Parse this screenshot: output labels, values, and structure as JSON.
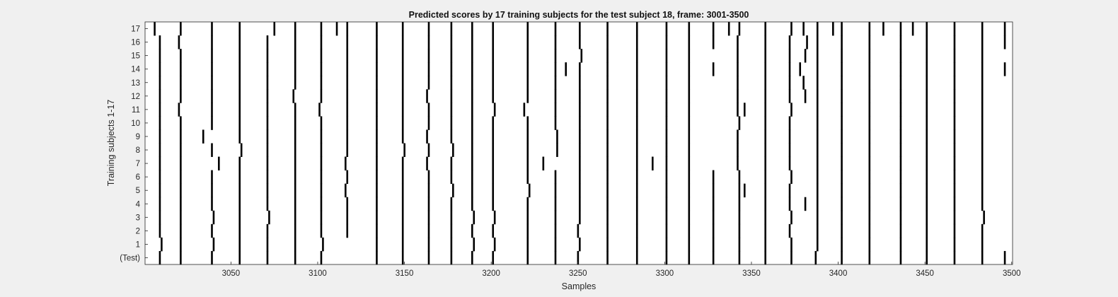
{
  "chart_data": {
    "type": "heatmap",
    "title": "Predicted scores by 17 training subjects for the test subject 18, frame: 3001-3500",
    "xlabel": "Samples",
    "ylabel": "Training subjects 1-17",
    "xlim": [
      3001,
      3500
    ],
    "x_ticks": [
      "3050",
      "3100",
      "3150",
      "3200",
      "3250",
      "3300",
      "3350",
      "3400",
      "3450",
      "3500"
    ],
    "x_tick_values": [
      3050,
      3100,
      3150,
      3200,
      3250,
      3300,
      3350,
      3400,
      3450,
      3500
    ],
    "y_tick_labels": [
      "(Test)",
      "1",
      "2",
      "3",
      "4",
      "5",
      "6",
      "7",
      "8",
      "9",
      "10",
      "11",
      "12",
      "13",
      "14",
      "15",
      "16",
      "17"
    ],
    "background_color": "#ffffff",
    "mark_color": "#000000",
    "rows": [
      {
        "label": "(Test)",
        "events": [
          3009,
          3021,
          3039,
          3055,
          3071,
          3087,
          3102,
          3134,
          3149,
          3164,
          3177,
          3189,
          3201,
          3221,
          3237,
          3250,
          3267,
          3284,
          3301,
          3314,
          3328,
          3343,
          3358,
          3373,
          3387,
          3402,
          3418,
          3436,
          3451,
          3467,
          3483,
          3496
        ]
      },
      {
        "label": "1",
        "events": [
          3010,
          3021,
          3040,
          3055,
          3071,
          3087,
          3103,
          3134,
          3149,
          3164,
          3177,
          3190,
          3202,
          3221,
          3237,
          3251,
          3267,
          3284,
          3301,
          3314,
          3328,
          3343,
          3358,
          3373,
          3388,
          3402,
          3418,
          3436,
          3451,
          3467,
          3483
        ]
      },
      {
        "label": "2",
        "events": [
          3009,
          3021,
          3039,
          3055,
          3071,
          3087,
          3102,
          3117,
          3134,
          3149,
          3164,
          3177,
          3189,
          3201,
          3221,
          3237,
          3250,
          3267,
          3284,
          3301,
          3314,
          3328,
          3343,
          3358,
          3372,
          3388,
          3402,
          3418,
          3436,
          3451,
          3467,
          3483
        ]
      },
      {
        "label": "3",
        "events": [
          3009,
          3021,
          3040,
          3055,
          3072,
          3087,
          3102,
          3117,
          3134,
          3149,
          3164,
          3177,
          3190,
          3202,
          3221,
          3237,
          3251,
          3267,
          3284,
          3301,
          3314,
          3328,
          3343,
          3358,
          3373,
          3388,
          3402,
          3418,
          3436,
          3451,
          3467,
          3484
        ]
      },
      {
        "label": "4",
        "events": [
          3009,
          3021,
          3039,
          3055,
          3071,
          3087,
          3102,
          3117,
          3134,
          3149,
          3164,
          3177,
          3189,
          3201,
          3221,
          3237,
          3251,
          3267,
          3284,
          3301,
          3314,
          3328,
          3343,
          3358,
          3372,
          3381,
          3388,
          3402,
          3418,
          3436,
          3451,
          3467,
          3483
        ]
      },
      {
        "label": "5",
        "events": [
          3009,
          3021,
          3039,
          3055,
          3071,
          3087,
          3102,
          3116,
          3134,
          3149,
          3164,
          3178,
          3189,
          3201,
          3222,
          3237,
          3251,
          3267,
          3284,
          3301,
          3314,
          3328,
          3343,
          3346,
          3358,
          3372,
          3388,
          3402,
          3418,
          3436,
          3451,
          3467,
          3483
        ]
      },
      {
        "label": "6",
        "events": [
          3009,
          3021,
          3039,
          3055,
          3071,
          3087,
          3102,
          3117,
          3134,
          3149,
          3164,
          3177,
          3189,
          3201,
          3221,
          3237,
          3251,
          3267,
          3284,
          3301,
          3314,
          3328,
          3343,
          3358,
          3373,
          3388,
          3402,
          3418,
          3436,
          3451,
          3467,
          3483
        ]
      },
      {
        "label": "7",
        "events": [
          3009,
          3021,
          3043,
          3055,
          3071,
          3087,
          3102,
          3116,
          3134,
          3149,
          3163,
          3177,
          3189,
          3201,
          3221,
          3230,
          3251,
          3267,
          3284,
          3293,
          3301,
          3314,
          3342,
          3358,
          3372,
          3388,
          3402,
          3418,
          3436,
          3451,
          3467,
          3483
        ]
      },
      {
        "label": "8",
        "events": [
          3009,
          3021,
          3039,
          3056,
          3071,
          3087,
          3102,
          3117,
          3134,
          3150,
          3164,
          3178,
          3189,
          3201,
          3221,
          3238,
          3251,
          3267,
          3284,
          3301,
          3314,
          3342,
          3358,
          3372,
          3388,
          3402,
          3418,
          3436,
          3451,
          3467,
          3483
        ]
      },
      {
        "label": "9",
        "events": [
          3009,
          3021,
          3034,
          3055,
          3071,
          3087,
          3102,
          3117,
          3134,
          3149,
          3163,
          3177,
          3189,
          3201,
          3221,
          3238,
          3251,
          3267,
          3284,
          3301,
          3314,
          3342,
          3358,
          3372,
          3388,
          3402,
          3418,
          3436,
          3451,
          3467,
          3483
        ]
      },
      {
        "label": "10",
        "events": [
          3009,
          3021,
          3039,
          3055,
          3071,
          3087,
          3102,
          3117,
          3134,
          3149,
          3164,
          3177,
          3189,
          3201,
          3221,
          3237,
          3251,
          3267,
          3284,
          3301,
          3314,
          3343,
          3358,
          3372,
          3388,
          3402,
          3418,
          3436,
          3451,
          3467,
          3483
        ]
      },
      {
        "label": "11",
        "events": [
          3009,
          3020,
          3039,
          3055,
          3071,
          3087,
          3101,
          3117,
          3134,
          3149,
          3164,
          3177,
          3189,
          3202,
          3219,
          3237,
          3251,
          3267,
          3284,
          3301,
          3314,
          3342,
          3346,
          3358,
          3373,
          3388,
          3402,
          3418,
          3436,
          3451,
          3467,
          3483
        ]
      },
      {
        "label": "12",
        "events": [
          3009,
          3021,
          3039,
          3055,
          3071,
          3086,
          3102,
          3117,
          3134,
          3149,
          3163,
          3177,
          3189,
          3201,
          3221,
          3237,
          3251,
          3267,
          3284,
          3301,
          3314,
          3342,
          3358,
          3372,
          3381,
          3388,
          3402,
          3418,
          3436,
          3451,
          3467,
          3483
        ]
      },
      {
        "label": "13",
        "events": [
          3009,
          3021,
          3039,
          3055,
          3071,
          3087,
          3102,
          3117,
          3134,
          3149,
          3164,
          3177,
          3189,
          3201,
          3221,
          3237,
          3251,
          3267,
          3284,
          3301,
          3314,
          3342,
          3358,
          3372,
          3380,
          3388,
          3402,
          3418,
          3436,
          3451,
          3467,
          3483
        ]
      },
      {
        "label": "14",
        "events": [
          3009,
          3021,
          3039,
          3055,
          3071,
          3087,
          3102,
          3117,
          3134,
          3149,
          3164,
          3177,
          3189,
          3201,
          3221,
          3237,
          3243,
          3251,
          3267,
          3284,
          3301,
          3314,
          3328,
          3342,
          3358,
          3372,
          3378,
          3388,
          3402,
          3418,
          3436,
          3451,
          3467,
          3483,
          3496
        ]
      },
      {
        "label": "15",
        "events": [
          3009,
          3021,
          3039,
          3055,
          3071,
          3087,
          3102,
          3117,
          3134,
          3149,
          3164,
          3177,
          3189,
          3201,
          3221,
          3237,
          3252,
          3267,
          3284,
          3301,
          3314,
          3342,
          3358,
          3372,
          3381,
          3388,
          3402,
          3418,
          3436,
          3451,
          3467,
          3483
        ]
      },
      {
        "label": "16",
        "events": [
          3009,
          3020,
          3039,
          3055,
          3071,
          3087,
          3102,
          3117,
          3134,
          3149,
          3164,
          3177,
          3189,
          3201,
          3221,
          3237,
          3251,
          3267,
          3284,
          3301,
          3314,
          3328,
          3342,
          3358,
          3372,
          3382,
          3388,
          3402,
          3418,
          3436,
          3451,
          3467,
          3483,
          3496
        ]
      },
      {
        "label": "17",
        "events": [
          3006,
          3021,
          3039,
          3055,
          3075,
          3087,
          3102,
          3111,
          3117,
          3134,
          3149,
          3164,
          3177,
          3189,
          3201,
          3221,
          3237,
          3251,
          3267,
          3284,
          3301,
          3314,
          3328,
          3337,
          3343,
          3358,
          3373,
          3380,
          3388,
          3397,
          3402,
          3418,
          3426,
          3436,
          3443,
          3451,
          3467,
          3483,
          3496
        ]
      }
    ]
  }
}
